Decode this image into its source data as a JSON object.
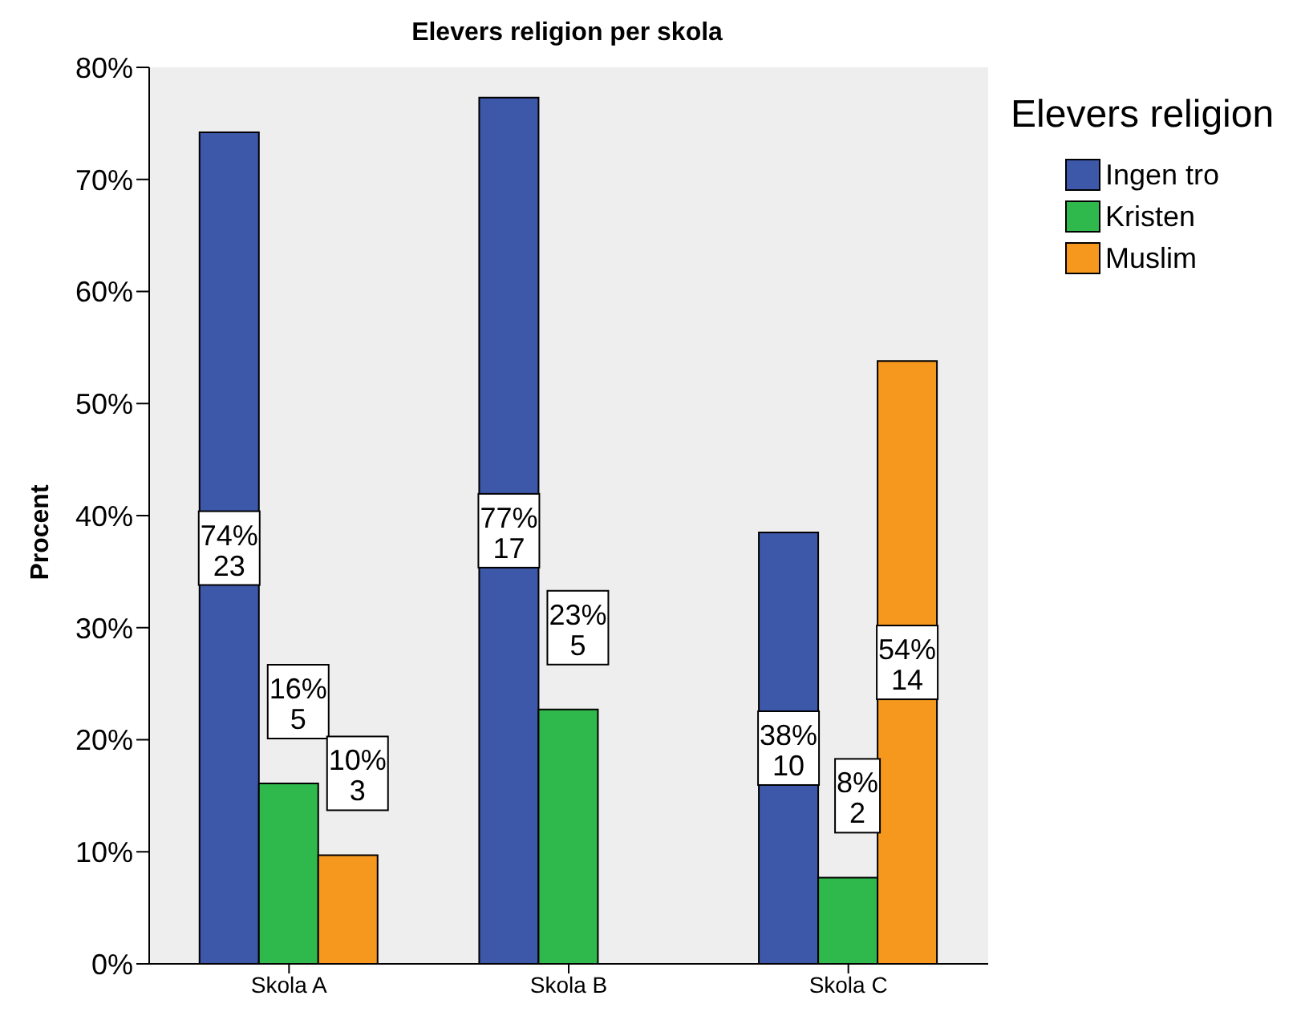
{
  "chart_data": {
    "type": "bar",
    "title": "Elevers religion per skola",
    "ylabel": "Procent",
    "legend_title": "Elevers religion",
    "legend": "top right",
    "categories": [
      "Skola A",
      "Skola B",
      "Skola C"
    ],
    "series": [
      {
        "name": "Ingen tro",
        "color": "#3d57a9",
        "values": [
          74.2,
          77.3,
          38.5
        ],
        "value_labels": [
          "74%\n23",
          "77%\n17",
          "38%\n10"
        ]
      },
      {
        "name": "Kristen",
        "color": "#2fb84b",
        "values": [
          16.1,
          22.7,
          7.7
        ],
        "value_labels": [
          "16%\n5",
          "23%\n5",
          "8%\n2"
        ]
      },
      {
        "name": "Muslim",
        "color": "#f7981e",
        "values": [
          9.7,
          null,
          53.8
        ],
        "value_labels": [
          "10%\n3",
          null,
          "54%\n14"
        ]
      }
    ],
    "ylim": [
      0,
      80
    ],
    "yticks": [
      {
        "value": 0,
        "label": "0%"
      },
      {
        "value": 10,
        "label": "10%"
      },
      {
        "value": 20,
        "label": "20%"
      },
      {
        "value": 30,
        "label": "30%"
      },
      {
        "value": 40,
        "label": "40%"
      },
      {
        "value": 50,
        "label": "50%"
      },
      {
        "value": 60,
        "label": "60%"
      },
      {
        "value": 70,
        "label": "70%"
      },
      {
        "value": 80,
        "label": "80%"
      }
    ]
  }
}
